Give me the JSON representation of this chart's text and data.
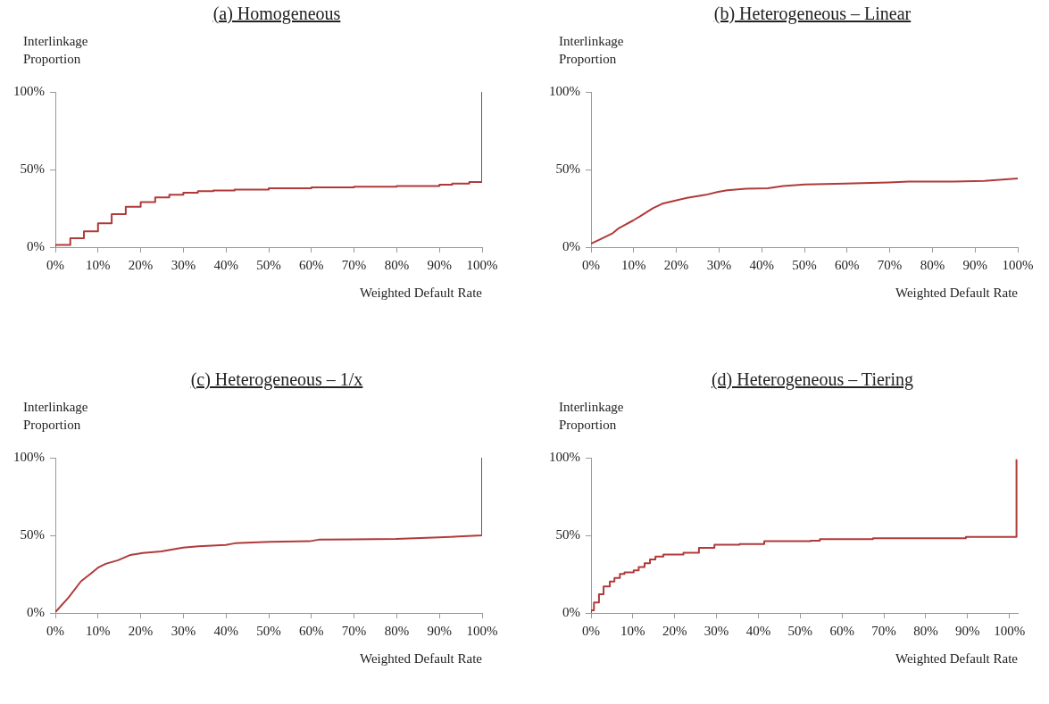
{
  "chart_data": [
    {
      "type": "step",
      "title": "(a) Homogeneous",
      "xlabel": "Weighted Default Rate",
      "ylabel": "Interlinkage Proportion",
      "xlim": [
        0,
        100
      ],
      "ylim": [
        0,
        100
      ],
      "xticks": [
        {
          "value": 0,
          "label": "0%"
        },
        {
          "value": 10,
          "label": "10%"
        },
        {
          "value": 20,
          "label": "20%"
        },
        {
          "value": 30,
          "label": "30%"
        },
        {
          "value": 40,
          "label": "40%"
        },
        {
          "value": 50,
          "label": "50%"
        },
        {
          "value": 60,
          "label": "60%"
        },
        {
          "value": 70,
          "label": "70%"
        },
        {
          "value": 80,
          "label": "80%"
        },
        {
          "value": 90,
          "label": "90%"
        },
        {
          "value": 100,
          "label": "100%"
        }
      ],
      "yticks": [
        {
          "value": 0,
          "label": "0%"
        },
        {
          "value": 50,
          "label": "50%"
        },
        {
          "value": 100,
          "label": "100%"
        }
      ],
      "series": [
        {
          "color": "#b03a3a",
          "x": [
            0,
            0,
            3.5,
            6.7,
            10,
            13.2,
            16.5,
            20,
            23.4,
            26.7,
            30,
            33.4,
            37,
            42,
            50,
            60,
            70,
            80,
            90,
            93,
            97,
            100,
            100
          ],
          "values": [
            0,
            1.5,
            5.8,
            10.2,
            15.4,
            21.2,
            26,
            29,
            32,
            33.7,
            35,
            36,
            36.5,
            37,
            38,
            38.5,
            39,
            39.4,
            40.3,
            41,
            42,
            42.7,
            100
          ]
        }
      ]
    },
    {
      "type": "line",
      "title": "(b) Heterogeneous – Linear",
      "xlabel": "Weighted Default Rate",
      "ylabel": "Interlinkage Proportion",
      "xlim": [
        0,
        100
      ],
      "ylim": [
        0,
        100
      ],
      "xticks": [
        {
          "value": 0,
          "label": "0%"
        },
        {
          "value": 10,
          "label": "10%"
        },
        {
          "value": 20,
          "label": "20%"
        },
        {
          "value": 30,
          "label": "30%"
        },
        {
          "value": 40,
          "label": "40%"
        },
        {
          "value": 50,
          "label": "50%"
        },
        {
          "value": 60,
          "label": "60%"
        },
        {
          "value": 70,
          "label": "70%"
        },
        {
          "value": 80,
          "label": "80%"
        },
        {
          "value": 90,
          "label": "90%"
        },
        {
          "value": 100,
          "label": "100%"
        }
      ],
      "yticks": [
        {
          "value": 0,
          "label": "0%"
        },
        {
          "value": 50,
          "label": "50%"
        },
        {
          "value": 100,
          "label": "100%"
        }
      ],
      "series": [
        {
          "color": "#b03a3a",
          "x": [
            0,
            2.2,
            5.1,
            6.5,
            9.8,
            11.6,
            14.5,
            16.7,
            19.6,
            22.5,
            26.9,
            29.8,
            31.9,
            36.3,
            41.4,
            45,
            50.1,
            59.5,
            69.7,
            74.7,
            84.9,
            92.2,
            100
          ],
          "values": [
            2.3,
            5.1,
            9,
            12.2,
            17.1,
            20,
            25.1,
            28,
            29.9,
            31.8,
            33.7,
            35.6,
            36.6,
            37.7,
            37.9,
            39.4,
            40.4,
            41,
            41.7,
            42.3,
            42.3,
            42.7,
            44.2
          ]
        }
      ]
    },
    {
      "type": "line",
      "title": "(c) Heterogeneous – 1/x",
      "xlabel": "Weighted Default Rate",
      "ylabel": "Interlinkage Proportion",
      "xlim": [
        0,
        100
      ],
      "ylim": [
        0,
        100
      ],
      "xticks": [
        {
          "value": 0,
          "label": "0%"
        },
        {
          "value": 10,
          "label": "10%"
        },
        {
          "value": 20,
          "label": "20%"
        },
        {
          "value": 30,
          "label": "30%"
        },
        {
          "value": 40,
          "label": "40%"
        },
        {
          "value": 50,
          "label": "50%"
        },
        {
          "value": 60,
          "label": "60%"
        },
        {
          "value": 70,
          "label": "70%"
        },
        {
          "value": 80,
          "label": "80%"
        },
        {
          "value": 90,
          "label": "90%"
        },
        {
          "value": 100,
          "label": "100%"
        }
      ],
      "yticks": [
        {
          "value": 0,
          "label": "0%"
        },
        {
          "value": 50,
          "label": "50%"
        },
        {
          "value": 100,
          "label": "100%"
        }
      ],
      "series": [
        {
          "color": "#b03a3a",
          "x": [
            0,
            3.1,
            6,
            8.2,
            10,
            11.8,
            14.7,
            17.6,
            20.5,
            24.8,
            29.9,
            33.5,
            39.9,
            42.1,
            50.1,
            59.5,
            61.7,
            69.6,
            79.8,
            89.9,
            100,
            100
          ],
          "values": [
            0.6,
            10,
            20.4,
            25.1,
            29.2,
            31.7,
            34,
            37.4,
            38.7,
            39.6,
            42.1,
            43,
            43.8,
            44.9,
            45.8,
            46.2,
            47.2,
            47.4,
            47.7,
            48.7,
            50,
            100
          ]
        }
      ]
    },
    {
      "type": "step",
      "title": "(d) Heterogeneous – Tiering",
      "xlabel": "Weighted Default Rate",
      "ylabel": "Interlinkage Proportion",
      "xlim": [
        0,
        102
      ],
      "ylim": [
        0,
        100
      ],
      "xticks": [
        {
          "value": 0,
          "label": "0%"
        },
        {
          "value": 10,
          "label": "10%"
        },
        {
          "value": 20,
          "label": "20%"
        },
        {
          "value": 30,
          "label": "30%"
        },
        {
          "value": 40,
          "label": "40%"
        },
        {
          "value": 50,
          "label": "50%"
        },
        {
          "value": 60,
          "label": "60%"
        },
        {
          "value": 70,
          "label": "70%"
        },
        {
          "value": 80,
          "label": "80%"
        },
        {
          "value": 90,
          "label": "90%"
        },
        {
          "value": 100,
          "label": "100%"
        }
      ],
      "yticks": [
        {
          "value": 0,
          "label": "0%"
        },
        {
          "value": 50,
          "label": "50%"
        },
        {
          "value": 100,
          "label": "100%"
        }
      ],
      "series": [
        {
          "color": "#b03a3a",
          "x": [
            0,
            0,
            0.7,
            1.9,
            3,
            4.5,
            5.6,
            6.9,
            8,
            10.2,
            11.4,
            12.8,
            14.1,
            15.4,
            17.3,
            22.1,
            25.8,
            29.5,
            35.5,
            41.4,
            52.5,
            54.7,
            67.4,
            89.6,
            100,
            101.7,
            101.7
          ],
          "values": [
            0,
            1.7,
            6.8,
            12,
            17.1,
            20.2,
            22.6,
            25.1,
            26.2,
            27.4,
            29.6,
            32.1,
            34.5,
            36.4,
            37.6,
            38.8,
            41.9,
            43.9,
            44.4,
            46.2,
            46.5,
            47.5,
            48.2,
            49,
            49,
            49,
            99
          ]
        }
      ]
    }
  ]
}
